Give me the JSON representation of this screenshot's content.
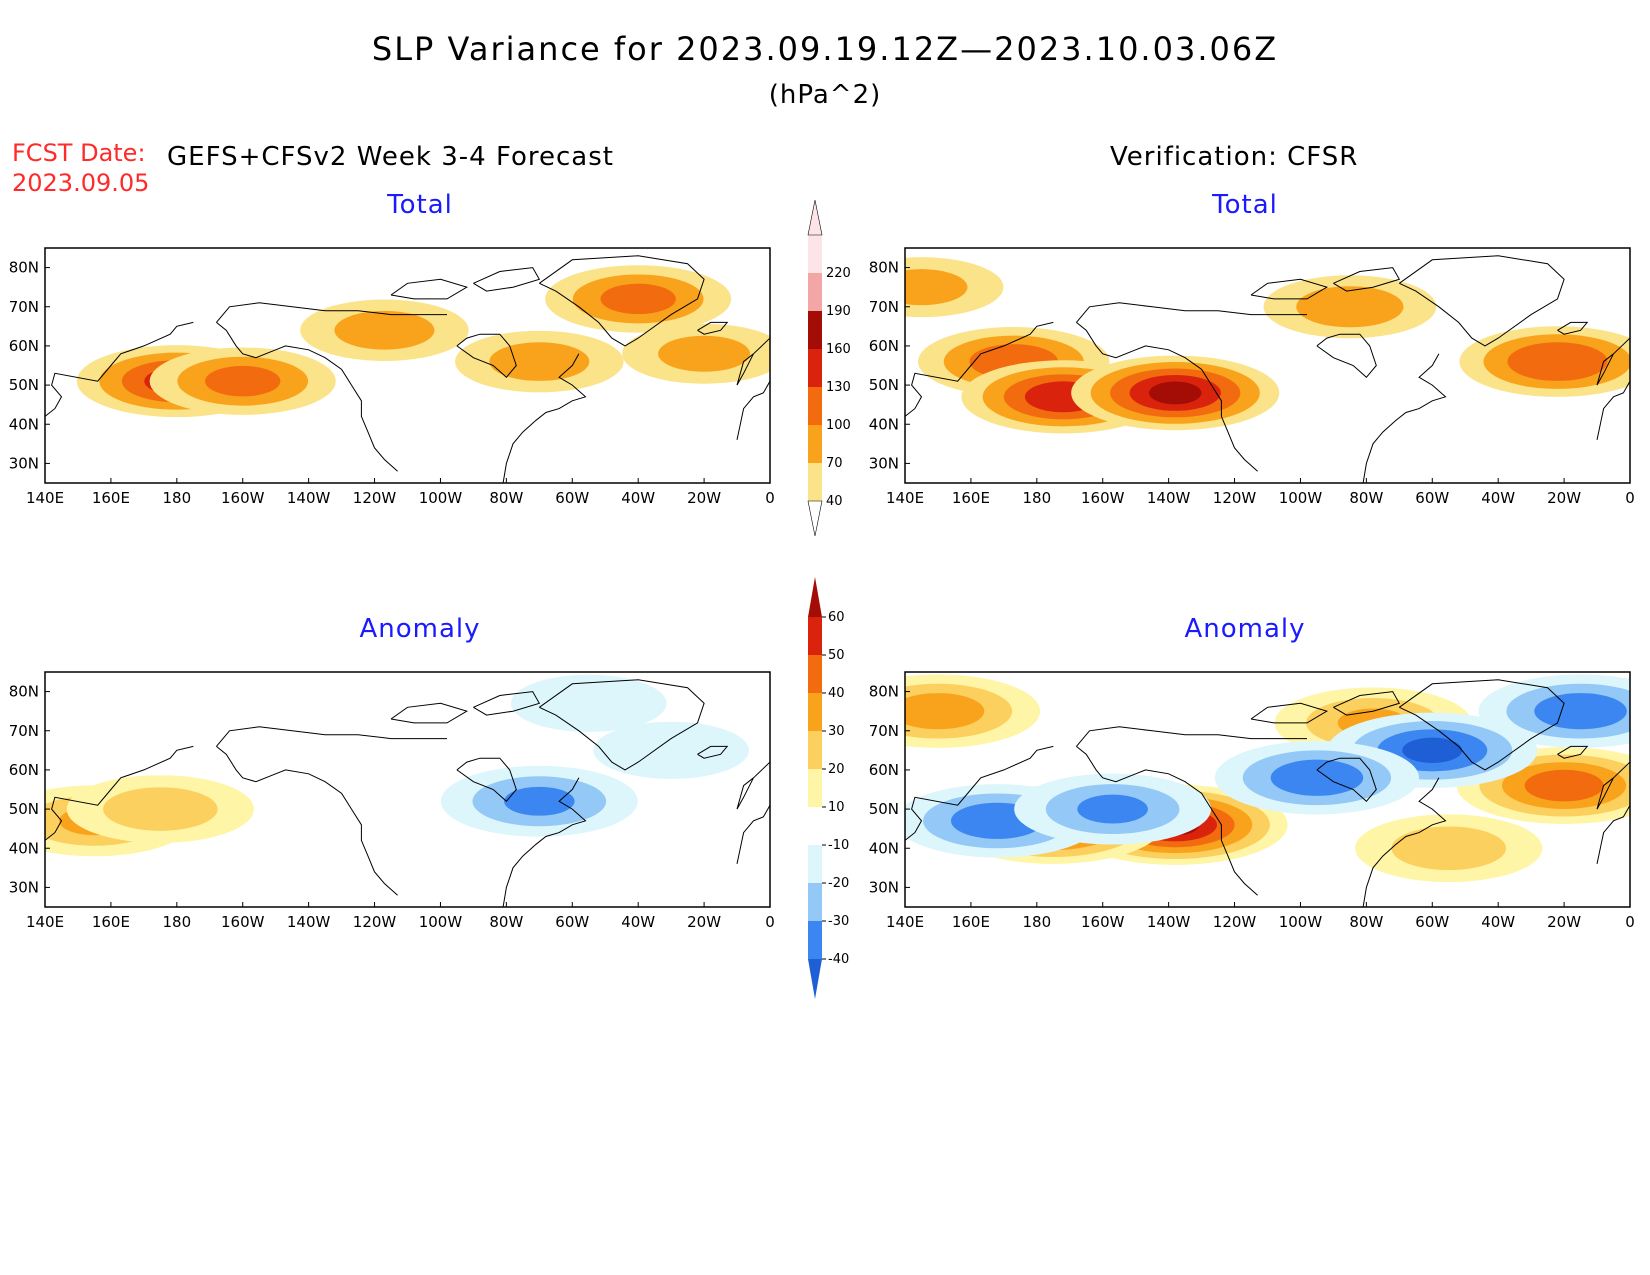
{
  "header": {
    "title": "SLP Variance for 2023.09.19.12Z—2023.10.03.06Z",
    "units": "(hPa^2)",
    "fcst_date_label": "FCST Date:",
    "fcst_date": "2023.09.05",
    "forecast_title": "GEFS+CFSv2 Week 3-4 Forecast",
    "verification_title": "Verification: CFSR"
  },
  "panels": {
    "forecast_total": {
      "title": "Total"
    },
    "verification_total": {
      "title": "Total"
    },
    "forecast_anomaly": {
      "title": "Anomaly"
    },
    "verification_anomaly": {
      "title": "Anomaly"
    }
  },
  "axes": {
    "lon_ticks": [
      "140E",
      "160E",
      "180",
      "160W",
      "140W",
      "120W",
      "100W",
      "80W",
      "60W",
      "40W",
      "20W",
      "0"
    ],
    "lat_ticks": [
      "30N",
      "40N",
      "50N",
      "60N",
      "70N",
      "80N"
    ],
    "lon_range": [
      140,
      360
    ],
    "lat_range": [
      25,
      85
    ]
  },
  "colorbars": {
    "total": {
      "levels": [
        "40",
        "70",
        "100",
        "130",
        "160",
        "190",
        "220"
      ],
      "colors": [
        "#fbe38a",
        "#f9a31c",
        "#f26b0f",
        "#d9230d",
        "#a30d06",
        "#f2a6a6",
        "#fde4e8"
      ]
    },
    "anomaly": {
      "levels": [
        "-40",
        "-30",
        "-20",
        "-10",
        "10",
        "20",
        "30",
        "40",
        "50",
        "60"
      ],
      "colors": [
        "#1f5fd6",
        "#3b86f0",
        "#93c8f7",
        "#ddf6fb",
        "#ffffff",
        "#fff5a6",
        "#fbd05e",
        "#f9a31c",
        "#f26b0f",
        "#d9230d",
        "#a30d06"
      ]
    }
  },
  "chart_data": [
    {
      "type": "heatmap",
      "panel": "forecast_total",
      "field": "SLP variance total",
      "blobs": [
        {
          "lon": 180,
          "lat": 51,
          "peak": 135
        },
        {
          "lon": 200,
          "lat": 51,
          "peak": 105
        },
        {
          "lon": 320,
          "lat": 72,
          "peak": 105
        },
        {
          "lon": 243,
          "lat": 64,
          "peak": 80
        },
        {
          "lon": 290,
          "lat": 56,
          "peak": 80
        },
        {
          "lon": 340,
          "lat": 58,
          "peak": 75
        }
      ]
    },
    {
      "type": "heatmap",
      "panel": "verification_total",
      "field": "SLP variance total",
      "blobs": [
        {
          "lon": 173,
          "lat": 56,
          "peak": 115
        },
        {
          "lon": 188,
          "lat": 47,
          "peak": 145
        },
        {
          "lon": 222,
          "lat": 48,
          "peak": 160
        },
        {
          "lon": 338,
          "lat": 56,
          "peak": 125
        },
        {
          "lon": 275,
          "lat": 70,
          "peak": 85
        },
        {
          "lon": 145,
          "lat": 75,
          "peak": 75
        }
      ]
    },
    {
      "type": "heatmap",
      "panel": "forecast_anomaly",
      "field": "SLP variance anomaly",
      "blobs": [
        {
          "lon": 155,
          "lat": 47,
          "peak": 30
        },
        {
          "lon": 175,
          "lat": 50,
          "peak": 25
        },
        {
          "lon": 290,
          "lat": 52,
          "peak": -30
        },
        {
          "lon": 330,
          "lat": 65,
          "peak": -15
        },
        {
          "lon": 305,
          "lat": 77,
          "peak": -15
        }
      ]
    },
    {
      "type": "heatmap",
      "panel": "verification_anomaly",
      "field": "SLP variance anomaly",
      "blobs": [
        {
          "lon": 222,
          "lat": 46,
          "peak": 60
        },
        {
          "lon": 185,
          "lat": 46,
          "peak": 50
        },
        {
          "lon": 340,
          "lat": 56,
          "peak": 45
        },
        {
          "lon": 150,
          "lat": 75,
          "peak": 35
        },
        {
          "lon": 282,
          "lat": 72,
          "peak": 30
        },
        {
          "lon": 305,
          "lat": 40,
          "peak": 25
        },
        {
          "lon": 300,
          "lat": 65,
          "peak": -40
        },
        {
          "lon": 265,
          "lat": 58,
          "peak": -35
        },
        {
          "lon": 168,
          "lat": 47,
          "peak": -35
        },
        {
          "lon": 203,
          "lat": 50,
          "peak": -30
        },
        {
          "lon": 345,
          "lat": 75,
          "peak": -35
        }
      ]
    }
  ]
}
